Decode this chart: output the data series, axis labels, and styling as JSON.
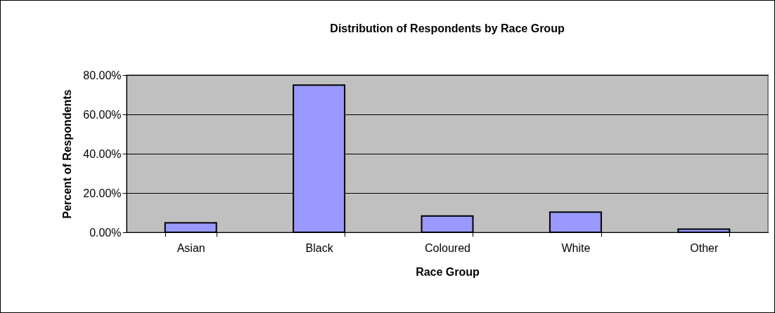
{
  "chart_data": {
    "type": "bar",
    "title": "Distribution of Respondents by Race Group",
    "xlabel": "Race Group",
    "ylabel": "Percent of Respondents",
    "categories": [
      "Asian",
      "Black",
      "Coloured",
      "White",
      "Other"
    ],
    "values": [
      4.8,
      74.9,
      8.3,
      10.3,
      1.6
    ],
    "color": "#9999ff",
    "ylim": [
      0,
      80
    ],
    "yticks": [
      {
        "value": 0,
        "label": "0.00%"
      },
      {
        "value": 20,
        "label": "20.00%"
      },
      {
        "value": 40,
        "label": "40.00%"
      },
      {
        "value": 60,
        "label": "60.00%"
      },
      {
        "value": 80,
        "label": "80.00%"
      }
    ],
    "grid": "y"
  }
}
